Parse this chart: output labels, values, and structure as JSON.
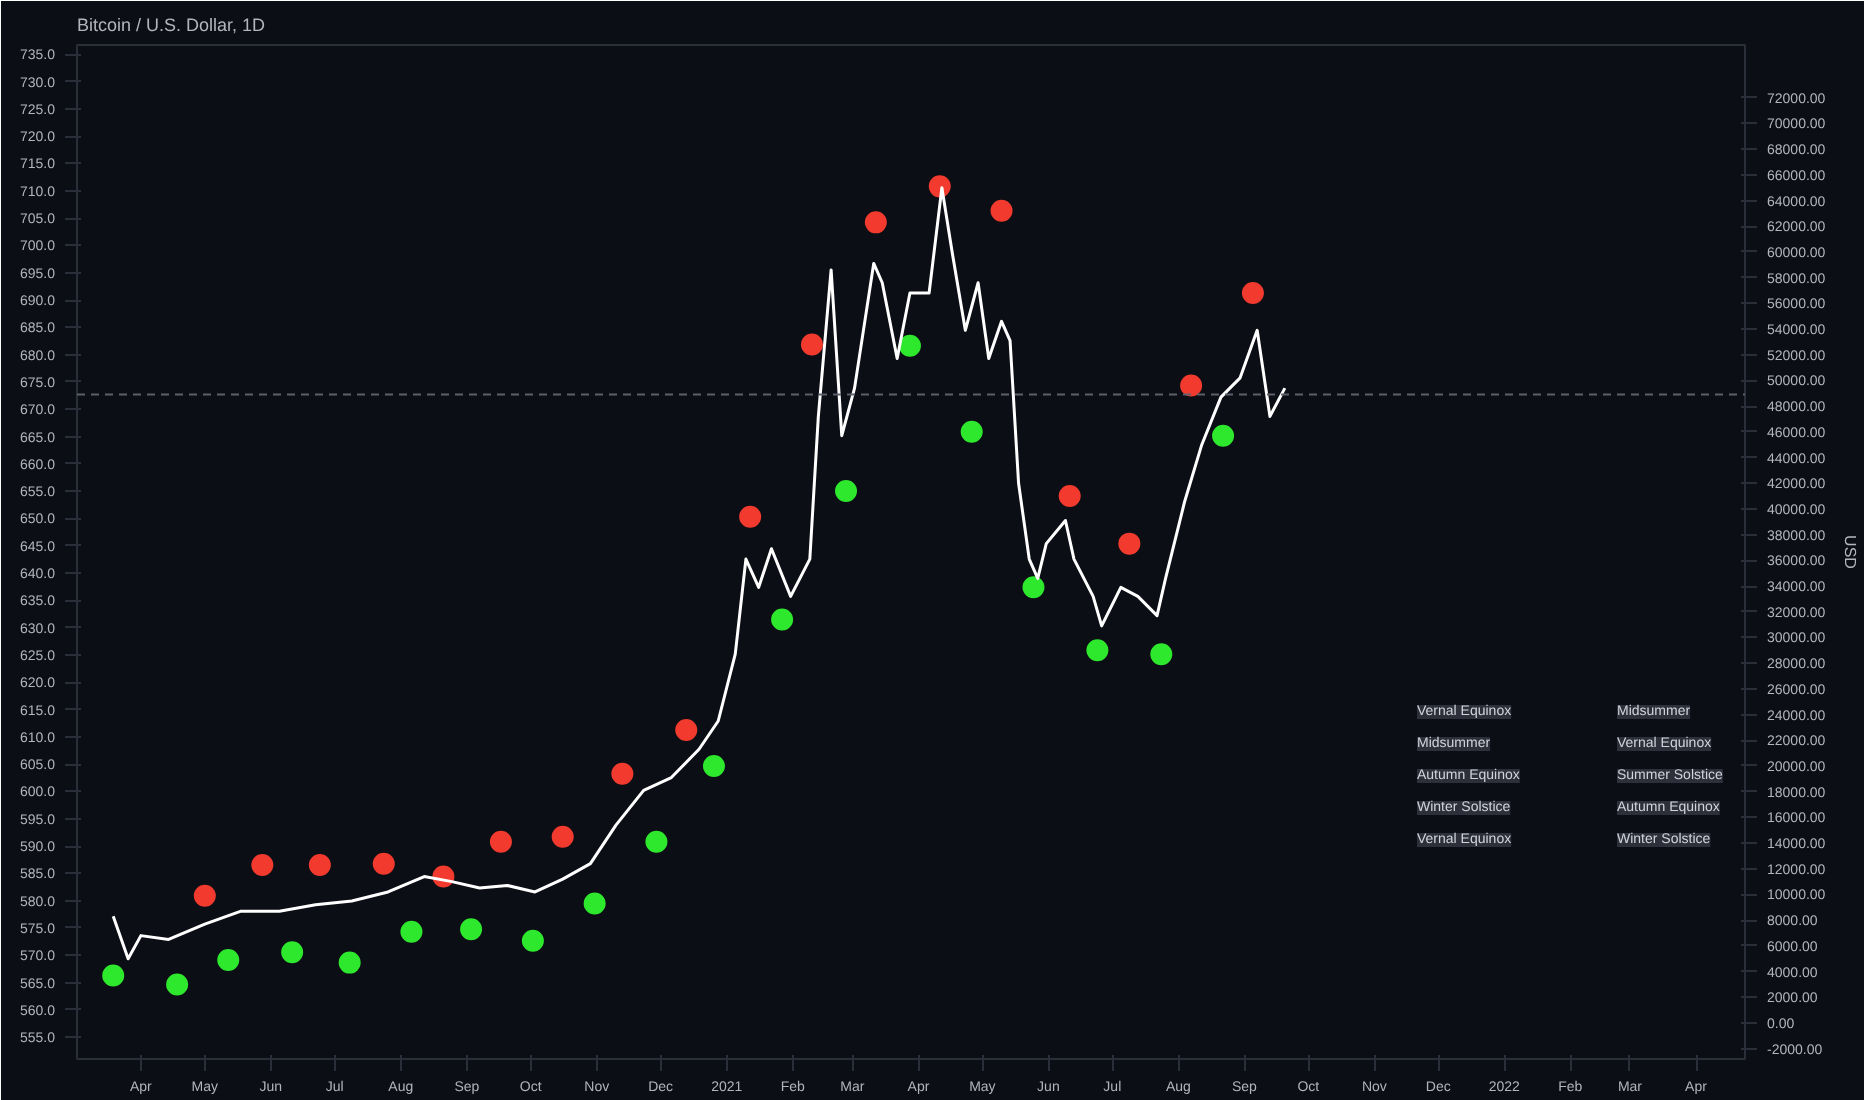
{
  "chart_data": {
    "type": "line",
    "title": "Bitcoin / U.S. Dollar, 1D",
    "xlim": [
      "2020-03-02",
      "2022-04-24"
    ],
    "xticks": [
      {
        "value": "2020-04-01",
        "label": "Apr"
      },
      {
        "value": "2020-05-01",
        "label": "May"
      },
      {
        "value": "2020-06-01",
        "label": "Jun"
      },
      {
        "value": "2020-07-01",
        "label": "Jul"
      },
      {
        "value": "2020-08-01",
        "label": "Aug"
      },
      {
        "value": "2020-09-01",
        "label": "Sep"
      },
      {
        "value": "2020-10-01",
        "label": "Oct"
      },
      {
        "value": "2020-11-01",
        "label": "Nov"
      },
      {
        "value": "2020-12-01",
        "label": "Dec"
      },
      {
        "value": "2021-01-01",
        "label": "2021"
      },
      {
        "value": "2021-02-01",
        "label": "Feb"
      },
      {
        "value": "2021-03-01",
        "label": "Mar"
      },
      {
        "value": "2021-04-01",
        "label": "Apr"
      },
      {
        "value": "2021-05-01",
        "label": "May"
      },
      {
        "value": "2021-06-01",
        "label": "Jun"
      },
      {
        "value": "2021-07-01",
        "label": "Jul"
      },
      {
        "value": "2021-08-01",
        "label": "Aug"
      },
      {
        "value": "2021-09-01",
        "label": "Sep"
      },
      {
        "value": "2021-10-01",
        "label": "Oct"
      },
      {
        "value": "2021-11-01",
        "label": "Nov"
      },
      {
        "value": "2021-12-01",
        "label": "Dec"
      },
      {
        "value": "2022-01-01",
        "label": "2022"
      },
      {
        "value": "2022-02-01",
        "label": "Feb"
      },
      {
        "value": "2022-03-01",
        "label": "Mar"
      },
      {
        "value": "2022-04-01",
        "label": "Apr"
      }
    ],
    "ylim": [
      551,
      736.7
    ],
    "yticks": [
      {
        "value": 555,
        "label": "555.0"
      },
      {
        "value": 560,
        "label": "560.0"
      },
      {
        "value": 565,
        "label": "565.0"
      },
      {
        "value": 570,
        "label": "570.0"
      },
      {
        "value": 575,
        "label": "575.0"
      },
      {
        "value": 580,
        "label": "580.0"
      },
      {
        "value": 585,
        "label": "585.0"
      },
      {
        "value": 590,
        "label": "590.0"
      },
      {
        "value": 595,
        "label": "595.0"
      },
      {
        "value": 600,
        "label": "600.0"
      },
      {
        "value": 605,
        "label": "605.0"
      },
      {
        "value": 610,
        "label": "610.0"
      },
      {
        "value": 615,
        "label": "615.0"
      },
      {
        "value": 620,
        "label": "620.0"
      },
      {
        "value": 625,
        "label": "625.0"
      },
      {
        "value": 630,
        "label": "630.0"
      },
      {
        "value": 635,
        "label": "635.0"
      },
      {
        "value": 640,
        "label": "640.0"
      },
      {
        "value": 645,
        "label": "645.0"
      },
      {
        "value": 650,
        "label": "650.0"
      },
      {
        "value": 655,
        "label": "655.0"
      },
      {
        "value": 660,
        "label": "660.0"
      },
      {
        "value": 665,
        "label": "665.0"
      },
      {
        "value": 670,
        "label": "670.0"
      },
      {
        "value": 675,
        "label": "675.0"
      },
      {
        "value": 680,
        "label": "680.0"
      },
      {
        "value": 685,
        "label": "685.0"
      },
      {
        "value": 690,
        "label": "690.0"
      },
      {
        "value": 695,
        "label": "695.0"
      },
      {
        "value": 700,
        "label": "700.0"
      },
      {
        "value": 705,
        "label": "705.0"
      },
      {
        "value": 710,
        "label": "710.0"
      },
      {
        "value": 715,
        "label": "715.0"
      },
      {
        "value": 720,
        "label": "720.0"
      },
      {
        "value": 725,
        "label": "725.0"
      },
      {
        "value": 730,
        "label": "730.0"
      },
      {
        "value": 735,
        "label": "735.0"
      }
    ],
    "y2label": "USD",
    "y2lim": [
      -2800,
      76100
    ],
    "y2ticks": [
      {
        "value": -2000,
        "label": "-2000.00"
      },
      {
        "value": 0,
        "label": "0.00"
      },
      {
        "value": 2000,
        "label": "2000.00"
      },
      {
        "value": 4000,
        "label": "4000.00"
      },
      {
        "value": 6000,
        "label": "6000.00"
      },
      {
        "value": 8000,
        "label": "8000.00"
      },
      {
        "value": 10000,
        "label": "10000.00"
      },
      {
        "value": 12000,
        "label": "12000.00"
      },
      {
        "value": 14000,
        "label": "14000.00"
      },
      {
        "value": 16000,
        "label": "16000.00"
      },
      {
        "value": 18000,
        "label": "18000.00"
      },
      {
        "value": 20000,
        "label": "20000.00"
      },
      {
        "value": 22000,
        "label": "22000.00"
      },
      {
        "value": 24000,
        "label": "24000.00"
      },
      {
        "value": 26000,
        "label": "26000.00"
      },
      {
        "value": 28000,
        "label": "28000.00"
      },
      {
        "value": 30000,
        "label": "30000.00"
      },
      {
        "value": 32000,
        "label": "32000.00"
      },
      {
        "value": 34000,
        "label": "34000.00"
      },
      {
        "value": 36000,
        "label": "36000.00"
      },
      {
        "value": 38000,
        "label": "38000.00"
      },
      {
        "value": 40000,
        "label": "40000.00"
      },
      {
        "value": 42000,
        "label": "42000.00"
      },
      {
        "value": 44000,
        "label": "44000.00"
      },
      {
        "value": 46000,
        "label": "46000.00"
      },
      {
        "value": 48000,
        "label": "48000.00"
      },
      {
        "value": 50000,
        "label": "50000.00"
      },
      {
        "value": 52000,
        "label": "52000.00"
      },
      {
        "value": 54000,
        "label": "54000.00"
      },
      {
        "value": 56000,
        "label": "56000.00"
      },
      {
        "value": 58000,
        "label": "58000.00"
      },
      {
        "value": 60000,
        "label": "60000.00"
      },
      {
        "value": 62000,
        "label": "62000.00"
      },
      {
        "value": 64000,
        "label": "64000.00"
      },
      {
        "value": 66000,
        "label": "66000.00"
      },
      {
        "value": 68000,
        "label": "68000.00"
      },
      {
        "value": 70000,
        "label": "70000.00"
      },
      {
        "value": 72000,
        "label": "72000.00"
      }
    ],
    "series": [
      {
        "axis": "y2",
        "color": "#ffffff",
        "x": [
          "2020-03-19",
          "2020-03-26",
          "2020-04-01",
          "2020-04-14",
          "2020-05-01",
          "2020-05-18",
          "2020-06-05",
          "2020-06-22",
          "2020-07-09",
          "2020-07-26",
          "2020-08-12",
          "2020-08-25",
          "2020-09-07",
          "2020-09-20",
          "2020-10-03",
          "2020-10-16",
          "2020-10-29",
          "2020-11-10",
          "2020-11-23",
          "2020-12-06",
          "2020-12-19",
          "2020-12-28",
          "2021-01-05",
          "2021-01-10",
          "2021-01-16",
          "2021-01-22",
          "2021-01-31",
          "2021-02-09",
          "2021-02-13",
          "2021-02-19",
          "2021-02-24",
          "2021-03-02",
          "2021-03-11",
          "2021-03-15",
          "2021-03-22",
          "2021-03-28",
          "2021-04-06",
          "2021-04-12",
          "2021-04-17",
          "2021-04-23",
          "2021-04-29",
          "2021-05-04",
          "2021-05-10",
          "2021-05-14",
          "2021-05-18",
          "2021-05-23",
          "2021-05-27",
          "2021-05-31",
          "2021-06-09",
          "2021-06-13",
          "2021-06-22",
          "2021-06-26",
          "2021-07-05",
          "2021-07-13",
          "2021-07-22",
          "2021-07-26",
          "2021-08-04",
          "2021-08-12",
          "2021-08-21",
          "2021-08-30",
          "2021-09-07",
          "2021-09-13",
          "2021-09-20"
        ],
        "values": [
          8300,
          5000,
          6800,
          6500,
          7700,
          8700,
          8700,
          9200,
          9500,
          10200,
          11400,
          11000,
          10500,
          10700,
          10200,
          11200,
          12400,
          15400,
          18100,
          19100,
          21300,
          23500,
          28700,
          36100,
          33900,
          36900,
          33200,
          36100,
          47200,
          58600,
          45700,
          49400,
          59100,
          57600,
          51700,
          56800,
          56800,
          65000,
          59800,
          53900,
          57600,
          51700,
          54600,
          53100,
          42000,
          36100,
          34600,
          37300,
          39100,
          36100,
          33200,
          30900,
          33900,
          33200,
          31700,
          34600,
          40600,
          45000,
          48700,
          50200,
          53900,
          47200,
          49400
        ]
      },
      {
        "type": "scatter",
        "axis": "y2",
        "color": "#f23a2e",
        "marker": "circle",
        "x": [
          "2020-05-01",
          "2020-05-28",
          "2020-06-24",
          "2020-07-24",
          "2020-08-21",
          "2020-09-17",
          "2020-10-16",
          "2020-11-13",
          "2020-12-13",
          "2021-01-12",
          "2021-02-10",
          "2021-03-12",
          "2021-04-11",
          "2021-05-10",
          "2021-06-11",
          "2021-07-09",
          "2021-08-07",
          "2021-09-05"
        ],
        "values": [
          9900,
          12300,
          12300,
          12400,
          11400,
          14100,
          14500,
          19400,
          22800,
          39400,
          52800,
          62300,
          65100,
          63200,
          41000,
          37300,
          49600,
          56800
        ]
      },
      {
        "type": "scatter",
        "axis": "y2",
        "color": "#2ee82e",
        "marker": "circle",
        "x": [
          "2020-03-19",
          "2020-04-18",
          "2020-05-12",
          "2020-06-11",
          "2020-07-08",
          "2020-08-06",
          "2020-09-03",
          "2020-10-02",
          "2020-10-31",
          "2020-11-29",
          "2020-12-26",
          "2021-01-27",
          "2021-02-26",
          "2021-03-28",
          "2021-04-26",
          "2021-05-25",
          "2021-06-24",
          "2021-07-24",
          "2021-08-22"
        ],
        "values": [
          3700,
          3000,
          4900,
          5500,
          4700,
          7100,
          7300,
          6400,
          9300,
          14100,
          20000,
          31400,
          41400,
          52700,
          46000,
          33900,
          29000,
          28700,
          45700
        ]
      }
    ],
    "ref_lines": [
      {
        "axis": "y2",
        "value": 48900,
        "color": "#5d606b",
        "line_style": "dashed"
      }
    ],
    "annotations": [
      "Vernal Equinox",
      "Midsummer",
      "Autumn Equinox",
      "Winter Solstice",
      "Vernal Equinox",
      "Midsummer",
      "Vernal Equinox",
      "Summer Solstice",
      "Autumn Equinox",
      "Winter Solstice"
    ]
  }
}
